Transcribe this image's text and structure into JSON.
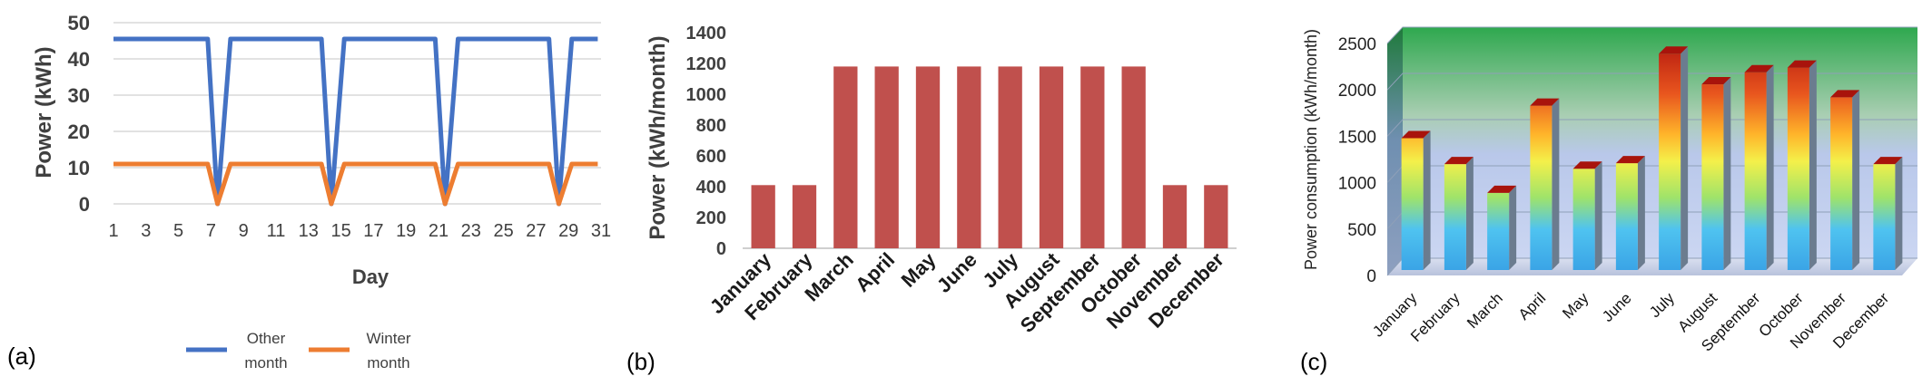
{
  "chart_data": [
    {
      "panel_label": "(a)",
      "type": "line",
      "ylabel": "Power (kWh)",
      "xlabel": "Day",
      "x_ticks": [
        1,
        3,
        5,
        7,
        9,
        11,
        13,
        15,
        17,
        19,
        21,
        23,
        25,
        27,
        29,
        31
      ],
      "y_ticks": [
        0,
        10,
        20,
        30,
        40,
        50
      ],
      "xlim": [
        1,
        31
      ],
      "ylim": [
        0,
        50
      ],
      "grid": "horizontal",
      "legend": "bottom",
      "series": [
        {
          "name": "Other month",
          "color": "#4472c4",
          "points": [
            [
              1,
              45.5
            ],
            [
              6.8,
              45.5
            ],
            [
              7.4,
              0
            ],
            [
              8.2,
              45.5
            ],
            [
              13.8,
              45.5
            ],
            [
              14.4,
              0
            ],
            [
              15.2,
              45.5
            ],
            [
              20.8,
              45.5
            ],
            [
              21.4,
              0
            ],
            [
              22.2,
              45.5
            ],
            [
              27.8,
              45.5
            ],
            [
              28.4,
              0
            ],
            [
              29.2,
              45.5
            ],
            [
              30.8,
              45.5
            ]
          ]
        },
        {
          "name": "Winter month",
          "color": "#ed7d31",
          "points": [
            [
              1,
              11
            ],
            [
              6.8,
              11
            ],
            [
              7.4,
              0
            ],
            [
              8.2,
              11
            ],
            [
              13.8,
              11
            ],
            [
              14.4,
              0
            ],
            [
              15.2,
              11
            ],
            [
              20.8,
              11
            ],
            [
              21.4,
              0
            ],
            [
              22.2,
              11
            ],
            [
              27.8,
              11
            ],
            [
              28.4,
              0
            ],
            [
              29.2,
              11
            ],
            [
              30.8,
              11
            ]
          ]
        }
      ]
    },
    {
      "panel_label": "(b)",
      "type": "bar",
      "ylabel": "Power (kWh/month)",
      "xlabel": "",
      "categories": [
        "January",
        "February",
        "March",
        "April",
        "May",
        "June",
        "July",
        "August",
        "September",
        "October",
        "November",
        "December"
      ],
      "values": [
        410,
        410,
        1180,
        1180,
        1180,
        1180,
        1180,
        1180,
        1180,
        1180,
        410,
        410
      ],
      "y_ticks": [
        0,
        200,
        400,
        600,
        800,
        1000,
        1200,
        1400
      ],
      "ylim": [
        0,
        1400
      ],
      "grid": "none",
      "bar_color": "#c0504d"
    },
    {
      "panel_label": "(c)",
      "type": "bar",
      "ylabel": "Power consumption (kWh/month)",
      "xlabel": "",
      "categories": [
        "January",
        "February",
        "March",
        "April",
        "May",
        "June",
        "July",
        "August",
        "September",
        "October",
        "November",
        "December"
      ],
      "values": [
        1480,
        1200,
        890,
        1830,
        1150,
        1210,
        2390,
        2060,
        2190,
        2240,
        1920,
        1200
      ],
      "y_ticks": [
        0,
        500,
        1000,
        1500,
        2000,
        2500
      ],
      "ylim": [
        0,
        2500
      ],
      "grid": "horizontal",
      "style": "3d gradient columns"
    }
  ]
}
